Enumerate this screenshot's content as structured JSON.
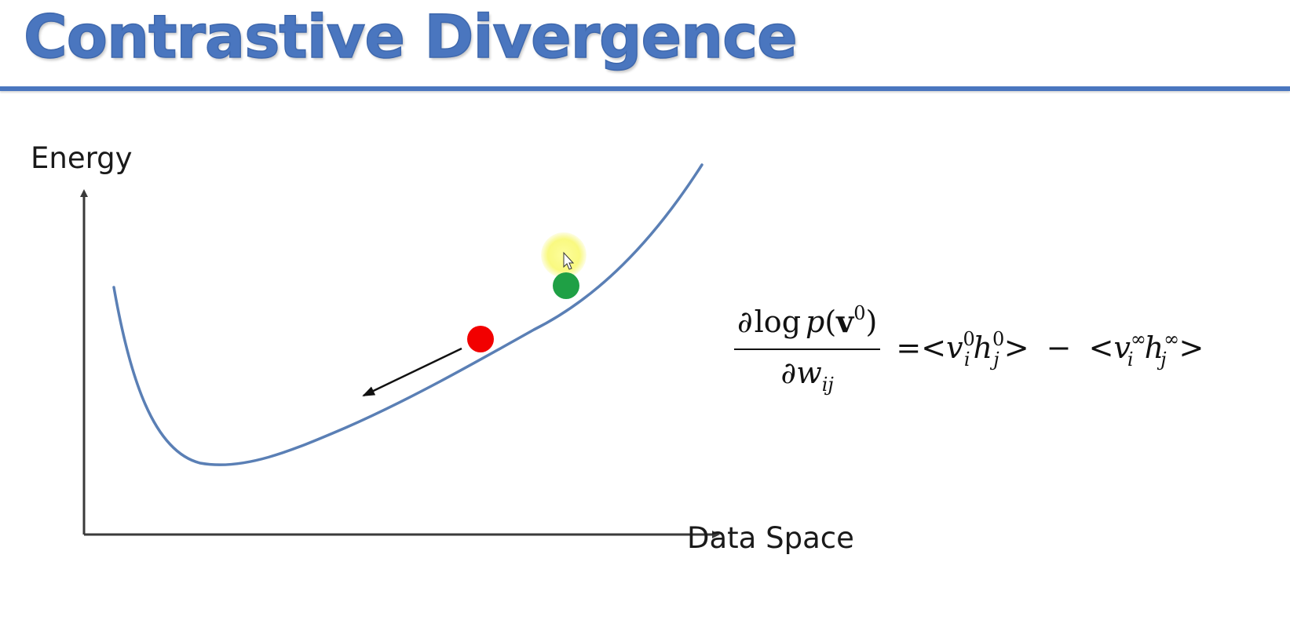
{
  "slide": {
    "title": "Contrastive Divergence"
  },
  "diagram": {
    "y_axis_label": "Energy",
    "x_axis_label": "Data Space",
    "colors": {
      "title": "#4a76bf",
      "curve": "#5a7fb5",
      "axes": "#3a3a3a",
      "red_point": "#f20000",
      "green_point": "#1fa045",
      "cursor_highlight": "#fbfb80"
    },
    "points": [
      {
        "name": "red-point",
        "color": "red"
      },
      {
        "name": "green-point",
        "color": "green"
      }
    ]
  },
  "formula": {
    "partial": "∂",
    "log": "log",
    "p": "p",
    "v": "v",
    "w": "w",
    "sub_ij": "ij",
    "sup_0": "0",
    "sup_inf": "∞",
    "v_i": "v",
    "h_j": "h",
    "sub_i": "i",
    "sub_j": "j",
    "lt": "<",
    "gt": ">",
    "eq": "=",
    "minus": "−",
    "lparen": "(",
    "rparen": ")"
  }
}
